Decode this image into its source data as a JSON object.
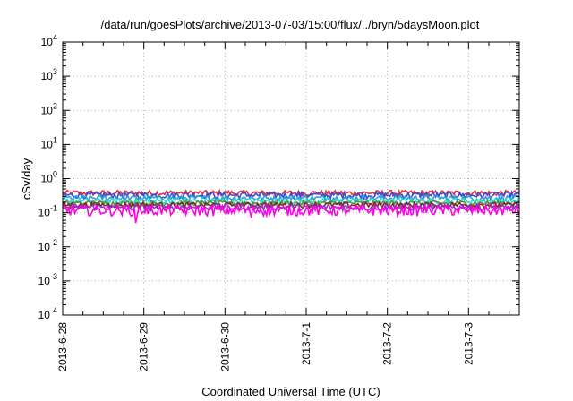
{
  "chart_data": {
    "type": "line",
    "title": "/data/run/goesPlots/archive/2013-07-03/15:00/flux/../bryn/5daysMoon.plot",
    "xlabel": "Coordinated Universal Time (UTC)",
    "ylabel": "cSv/day",
    "yscale": "log",
    "ylim": [
      0.0001,
      10000
    ],
    "xlim": [
      "2013-06-28 00:00",
      "2013-07-03 15:00"
    ],
    "x_ticks": [
      "2013-6-28",
      "2013-6-29",
      "2013-6-30",
      "2013-7-1",
      "2013-7-2",
      "2013-7-3"
    ],
    "y_ticks": [
      {
        "base": "10",
        "exp": "-4"
      },
      {
        "base": "10",
        "exp": "-3"
      },
      {
        "base": "10",
        "exp": "-2"
      },
      {
        "base": "10",
        "exp": "-1"
      },
      {
        "base": "10",
        "exp": "0"
      },
      {
        "base": "10",
        "exp": "1"
      },
      {
        "base": "10",
        "exp": "2"
      },
      {
        "base": "10",
        "exp": "3"
      },
      {
        "base": "10",
        "exp": "4"
      }
    ],
    "grid": true,
    "legend": false,
    "series": [
      {
        "color": "#e8303a",
        "base": 0.38,
        "noise": 0.07
      },
      {
        "color": "#3a4bd6",
        "base": 0.33,
        "noise": 0.07
      },
      {
        "color": "#2aa2d8",
        "base": 0.27,
        "noise": 0.05
      },
      {
        "color": "#27e0d0",
        "base": 0.22,
        "noise": 0.04
      },
      {
        "color": "#5a8f3a",
        "base": 0.19,
        "noise": 0.03
      },
      {
        "color": "#7a2a2a",
        "base": 0.17,
        "noise": 0.03
      },
      {
        "color": "#9a30c8",
        "base": 0.145,
        "noise": 0.03
      },
      {
        "color": "#ff00e6",
        "base": 0.12,
        "noise": 0.04
      }
    ]
  }
}
